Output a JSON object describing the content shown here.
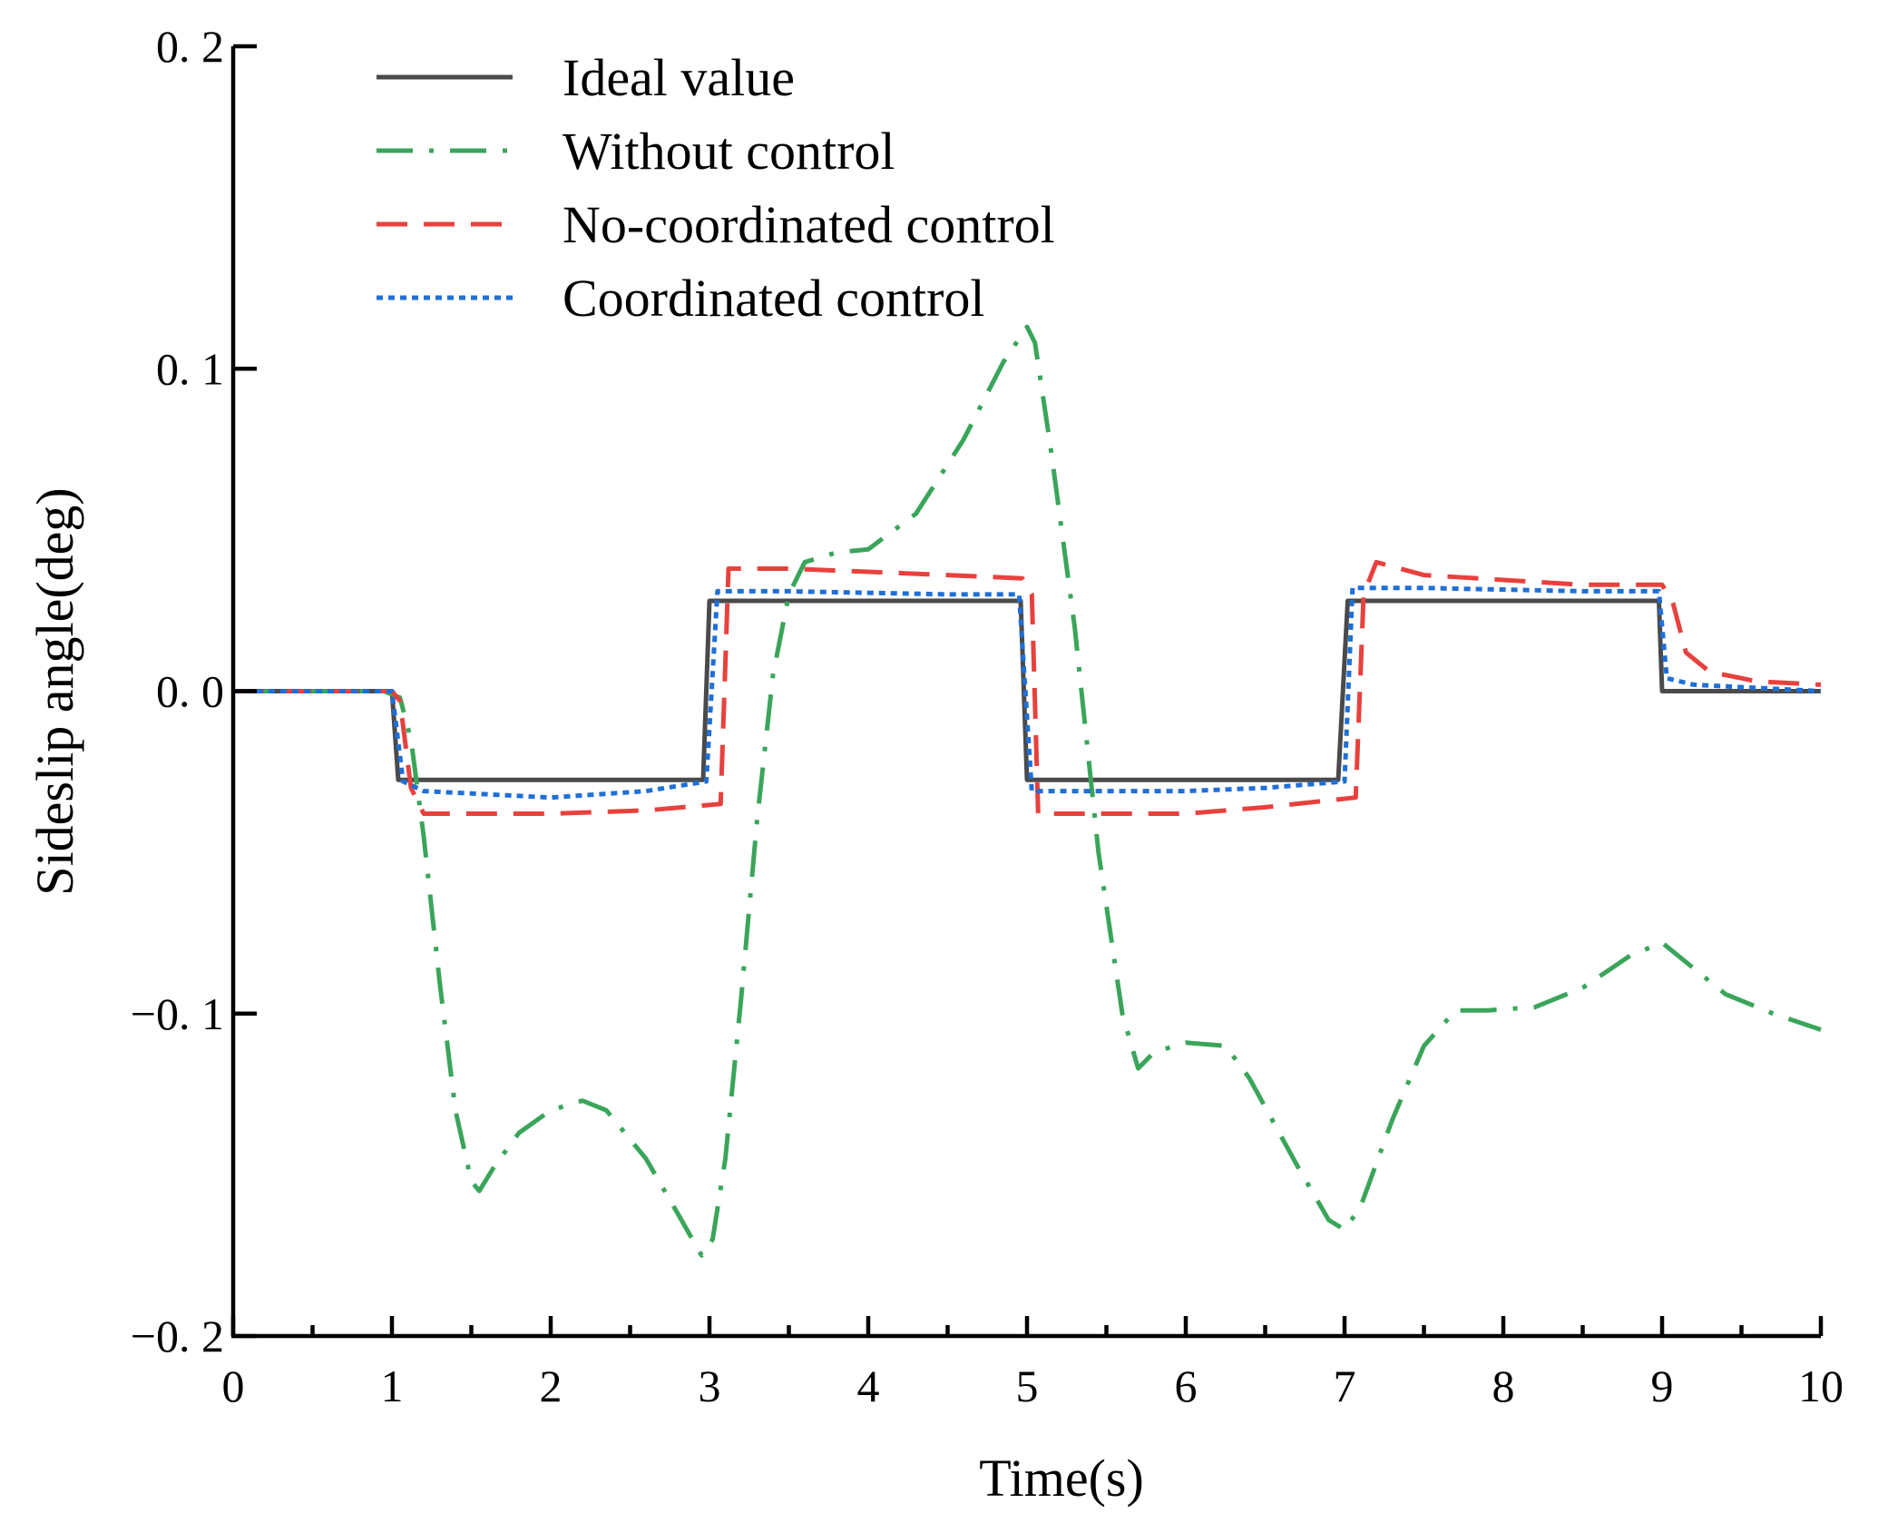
{
  "chart_data": {
    "type": "line",
    "title": "",
    "xlabel": "Time(s)",
    "ylabel": "Sideslip angle(deg)",
    "xlim": [
      0,
      10
    ],
    "ylim": [
      -0.2,
      0.2
    ],
    "grid": false,
    "legend_position": "top-left",
    "x_ticks": [
      {
        "value": 0,
        "label": "0"
      },
      {
        "value": 1,
        "label": "1"
      },
      {
        "value": 2,
        "label": "2"
      },
      {
        "value": 3,
        "label": "3"
      },
      {
        "value": 4,
        "label": "4"
      },
      {
        "value": 5,
        "label": "5"
      },
      {
        "value": 6,
        "label": "6"
      },
      {
        "value": 7,
        "label": "7"
      },
      {
        "value": 8,
        "label": "8"
      },
      {
        "value": 9,
        "label": "9"
      },
      {
        "value": 10,
        "label": "10"
      }
    ],
    "x_minor_ticks": [
      0.5,
      1.5,
      2.5,
      3.5,
      4.5,
      5.5,
      6.5,
      7.5,
      8.5,
      9.5
    ],
    "y_ticks": [
      {
        "value": -0.2,
        "label": "−0. 2"
      },
      {
        "value": -0.1,
        "label": "−0. 1"
      },
      {
        "value": 0.0,
        "label": "0. 0"
      },
      {
        "value": 0.1,
        "label": "0. 1"
      },
      {
        "value": 0.2,
        "label": "0. 2"
      }
    ],
    "series": [
      {
        "name": "Ideal value",
        "color": "#4a4a4a",
        "dash": "solid",
        "points": [
          [
            0,
            0
          ],
          [
            1.0,
            0
          ],
          [
            1.04,
            -0.0275
          ],
          [
            2.96,
            -0.0275
          ],
          [
            3.0,
            0.028
          ],
          [
            4.96,
            0.028
          ],
          [
            5.0,
            -0.0275
          ],
          [
            6.96,
            -0.0275
          ],
          [
            7.02,
            0.028
          ],
          [
            8.98,
            0.028
          ],
          [
            9.0,
            0
          ],
          [
            10,
            0
          ]
        ]
      },
      {
        "name": "Without control",
        "color": "#3aa55a",
        "dash": "dashdot",
        "points": [
          [
            0,
            0
          ],
          [
            0.95,
            0
          ],
          [
            1.05,
            -0.002
          ],
          [
            1.12,
            -0.015
          ],
          [
            1.2,
            -0.045
          ],
          [
            1.3,
            -0.09
          ],
          [
            1.4,
            -0.13
          ],
          [
            1.5,
            -0.152
          ],
          [
            1.55,
            -0.155
          ],
          [
            1.65,
            -0.147
          ],
          [
            1.8,
            -0.137
          ],
          [
            2.0,
            -0.13
          ],
          [
            2.2,
            -0.127
          ],
          [
            2.35,
            -0.13
          ],
          [
            2.6,
            -0.145
          ],
          [
            2.8,
            -0.162
          ],
          [
            2.95,
            -0.175
          ],
          [
            3.02,
            -0.17
          ],
          [
            3.1,
            -0.145
          ],
          [
            3.2,
            -0.095
          ],
          [
            3.3,
            -0.04
          ],
          [
            3.4,
            0.005
          ],
          [
            3.5,
            0.03
          ],
          [
            3.6,
            0.04
          ],
          [
            3.8,
            0.043
          ],
          [
            4.0,
            0.044
          ],
          [
            4.3,
            0.055
          ],
          [
            4.6,
            0.078
          ],
          [
            4.85,
            0.102
          ],
          [
            5.0,
            0.113
          ],
          [
            5.05,
            0.108
          ],
          [
            5.15,
            0.075
          ],
          [
            5.3,
            0.02
          ],
          [
            5.45,
            -0.05
          ],
          [
            5.6,
            -0.1
          ],
          [
            5.7,
            -0.117
          ],
          [
            5.8,
            -0.112
          ],
          [
            6.0,
            -0.109
          ],
          [
            6.25,
            -0.11
          ],
          [
            6.4,
            -0.12
          ],
          [
            6.7,
            -0.147
          ],
          [
            6.9,
            -0.164
          ],
          [
            7.0,
            -0.167
          ],
          [
            7.1,
            -0.16
          ],
          [
            7.3,
            -0.133
          ],
          [
            7.5,
            -0.11
          ],
          [
            7.7,
            -0.099
          ],
          [
            7.9,
            -0.099
          ],
          [
            8.2,
            -0.098
          ],
          [
            8.5,
            -0.092
          ],
          [
            8.8,
            -0.082
          ],
          [
            9.0,
            -0.078
          ],
          [
            9.1,
            -0.082
          ],
          [
            9.4,
            -0.094
          ],
          [
            9.7,
            -0.1
          ],
          [
            10,
            -0.105
          ]
        ]
      },
      {
        "name": "No-coordinated control",
        "color": "#e8413d",
        "dash": "dashed",
        "points": [
          [
            0,
            0
          ],
          [
            1.0,
            0
          ],
          [
            1.05,
            -0.003
          ],
          [
            1.12,
            -0.03
          ],
          [
            1.2,
            -0.038
          ],
          [
            2.0,
            -0.038
          ],
          [
            2.6,
            -0.037
          ],
          [
            3.07,
            -0.035
          ],
          [
            3.12,
            0.038
          ],
          [
            3.5,
            0.038
          ],
          [
            4.5,
            0.036
          ],
          [
            4.97,
            0.035
          ],
          [
            5.03,
            0.03
          ],
          [
            5.07,
            -0.038
          ],
          [
            6.0,
            -0.038
          ],
          [
            6.5,
            -0.036
          ],
          [
            7.07,
            -0.033
          ],
          [
            7.12,
            0.03
          ],
          [
            7.2,
            0.04
          ],
          [
            7.5,
            0.036
          ],
          [
            8.5,
            0.033
          ],
          [
            9.0,
            0.033
          ],
          [
            9.07,
            0.027
          ],
          [
            9.15,
            0.012
          ],
          [
            9.3,
            0.006
          ],
          [
            9.6,
            0.003
          ],
          [
            10,
            0.002
          ]
        ]
      },
      {
        "name": "Coordinated control",
        "color": "#1f6fd6",
        "dash": "dotted",
        "points": [
          [
            0,
            0
          ],
          [
            1.0,
            0
          ],
          [
            1.07,
            -0.028
          ],
          [
            1.2,
            -0.031
          ],
          [
            2.0,
            -0.033
          ],
          [
            2.6,
            -0.031
          ],
          [
            2.98,
            -0.028
          ],
          [
            3.05,
            0.031
          ],
          [
            3.5,
            0.031
          ],
          [
            4.5,
            0.03
          ],
          [
            4.95,
            0.03
          ],
          [
            5.03,
            -0.031
          ],
          [
            6.0,
            -0.031
          ],
          [
            6.5,
            -0.03
          ],
          [
            7.0,
            -0.028
          ],
          [
            7.05,
            0.032
          ],
          [
            7.5,
            0.032
          ],
          [
            8.5,
            0.031
          ],
          [
            8.98,
            0.031
          ],
          [
            9.03,
            0.004
          ],
          [
            9.2,
            0.002
          ],
          [
            10,
            0.0
          ]
        ]
      }
    ]
  }
}
